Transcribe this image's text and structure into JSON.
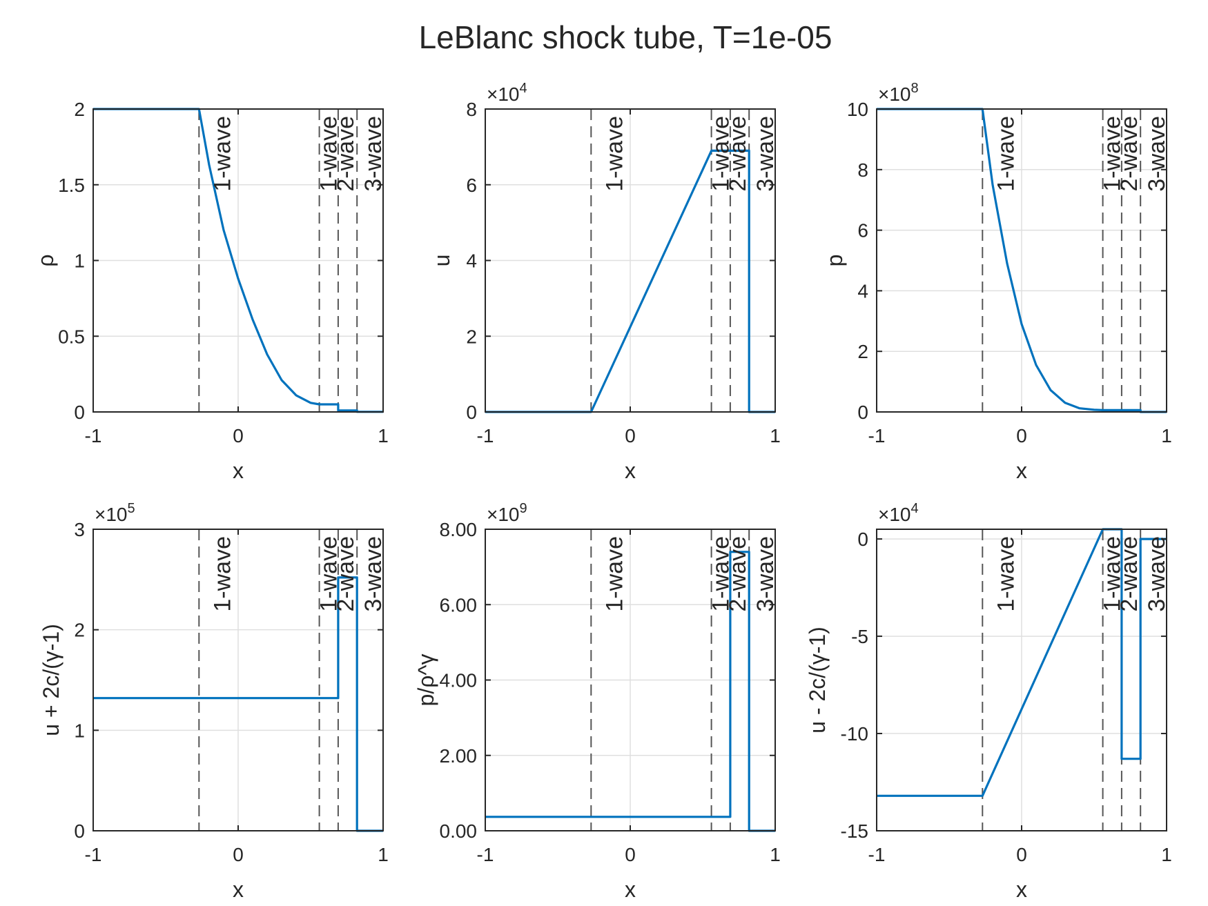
{
  "figure": {
    "title": "LeBlanc shock tube, T=1e-05",
    "colors": {
      "series": "#0072BD",
      "axes": "#262626",
      "grid": "#DFDFDF",
      "marker": "#555555"
    },
    "wave_labels": [
      "1-wave",
      "1-wave",
      "2-wave",
      "3-wave"
    ]
  },
  "chart_data": [
    {
      "type": "line",
      "xlabel": "x",
      "ylabel": "ρ",
      "exponent": "",
      "xlim": [
        -1,
        1
      ],
      "ylim": [
        0,
        2
      ],
      "xticks": [
        -1,
        0,
        1
      ],
      "xtick_labels": [
        "-1",
        "0",
        "1"
      ],
      "yticks": [
        0,
        0.5,
        1,
        1.5,
        2
      ],
      "ytick_labels": [
        "0",
        "0.5",
        "1",
        "1.5",
        "2"
      ],
      "grid": true,
      "wave_positions": [
        -0.27,
        0.56,
        0.69,
        0.82
      ],
      "wave_labels": [
        "1-wave",
        "1-wave",
        "2-wave",
        "3-wave"
      ],
      "series": [
        {
          "points": [
            [
              -1,
              2
            ],
            [
              -0.27,
              2
            ],
            [
              -0.2,
              1.63
            ],
            [
              -0.1,
              1.2
            ],
            [
              0,
              0.88
            ],
            [
              0.1,
              0.61
            ],
            [
              0.2,
              0.38
            ],
            [
              0.3,
              0.21
            ],
            [
              0.4,
              0.11
            ],
            [
              0.5,
              0.06
            ],
            [
              0.56,
              0.05
            ],
            [
              0.69,
              0.05
            ],
            [
              0.69,
              0.01
            ],
            [
              0.82,
              0.01
            ],
            [
              0.82,
              0.001
            ],
            [
              1,
              0.001
            ]
          ]
        }
      ]
    },
    {
      "type": "line",
      "xlabel": "x",
      "ylabel": "u",
      "exponent": "4",
      "xlim": [
        -1,
        1
      ],
      "ylim": [
        0,
        8
      ],
      "xticks": [
        -1,
        0,
        1
      ],
      "xtick_labels": [
        "-1",
        "0",
        "1"
      ],
      "yticks": [
        0,
        2,
        4,
        6,
        8
      ],
      "ytick_labels": [
        "0",
        "2",
        "4",
        "6",
        "8"
      ],
      "grid": true,
      "wave_positions": [
        -0.27,
        0.56,
        0.69,
        0.82
      ],
      "wave_labels": [
        "1-wave",
        "1-wave",
        "2-wave",
        "3-wave"
      ],
      "series": [
        {
          "points": [
            [
              -1,
              0
            ],
            [
              -0.27,
              0
            ],
            [
              0.56,
              6.9
            ],
            [
              0.82,
              6.9
            ],
            [
              0.82,
              0
            ],
            [
              1,
              0
            ]
          ]
        }
      ]
    },
    {
      "type": "line",
      "xlabel": "x",
      "ylabel": "p",
      "exponent": "8",
      "xlim": [
        -1,
        1
      ],
      "ylim": [
        0,
        10
      ],
      "xticks": [
        -1,
        0,
        1
      ],
      "xtick_labels": [
        "-1",
        "0",
        "1"
      ],
      "yticks": [
        0,
        2,
        4,
        6,
        8,
        10
      ],
      "ytick_labels": [
        "0",
        "2",
        "4",
        "6",
        "8",
        "10"
      ],
      "grid": true,
      "wave_positions": [
        -0.27,
        0.56,
        0.69,
        0.82
      ],
      "wave_labels": [
        "1-wave",
        "1-wave",
        "2-wave",
        "3-wave"
      ],
      "series": [
        {
          "points": [
            [
              -1,
              10
            ],
            [
              -0.27,
              10
            ],
            [
              -0.2,
              7.5
            ],
            [
              -0.1,
              4.9
            ],
            [
              0,
              2.9
            ],
            [
              0.1,
              1.55
            ],
            [
              0.2,
              0.72
            ],
            [
              0.3,
              0.3
            ],
            [
              0.4,
              0.12
            ],
            [
              0.5,
              0.07
            ],
            [
              0.56,
              0.06
            ],
            [
              0.82,
              0.06
            ],
            [
              0.82,
              0.0
            ],
            [
              1,
              0.0
            ]
          ]
        }
      ]
    },
    {
      "type": "line",
      "xlabel": "x",
      "ylabel": "u + 2c/(γ-1)",
      "exponent": "5",
      "xlim": [
        -1,
        1
      ],
      "ylim": [
        0,
        3
      ],
      "xticks": [
        -1,
        0,
        1
      ],
      "xtick_labels": [
        "-1",
        "0",
        "1"
      ],
      "yticks": [
        0,
        1,
        2,
        3
      ],
      "ytick_labels": [
        "0",
        "1",
        "2",
        "3"
      ],
      "grid": true,
      "wave_positions": [
        -0.27,
        0.56,
        0.69,
        0.82
      ],
      "wave_labels": [
        "1-wave",
        "1-wave",
        "2-wave",
        "3-wave"
      ],
      "series": [
        {
          "points": [
            [
              -1,
              1.32
            ],
            [
              0.69,
              1.32
            ],
            [
              0.69,
              2.52
            ],
            [
              0.82,
              2.52
            ],
            [
              0.82,
              0
            ],
            [
              1,
              0
            ]
          ]
        }
      ]
    },
    {
      "type": "line",
      "xlabel": "x",
      "ylabel": "p/ρ^γ",
      "exponent": "9",
      "xlim": [
        -1,
        1
      ],
      "ylim": [
        0,
        8
      ],
      "xticks": [
        -1,
        0,
        1
      ],
      "xtick_labels": [
        "-1",
        "0",
        "1"
      ],
      "yticks": [
        0,
        2,
        4,
        6,
        8
      ],
      "ytick_labels": [
        "0.00",
        "2.00",
        "4.00",
        "6.00",
        "8.00"
      ],
      "grid": true,
      "wave_positions": [
        -0.27,
        0.56,
        0.69,
        0.82
      ],
      "wave_labels": [
        "1-wave",
        "1-wave",
        "2-wave",
        "3-wave"
      ],
      "series": [
        {
          "points": [
            [
              -1,
              0.37
            ],
            [
              0.69,
              0.37
            ],
            [
              0.69,
              7.4
            ],
            [
              0.82,
              7.4
            ],
            [
              0.82,
              0
            ],
            [
              1,
              0
            ]
          ]
        }
      ]
    },
    {
      "type": "line",
      "xlabel": "x",
      "ylabel": "u - 2c/(γ-1)",
      "exponent": "4",
      "xlim": [
        -1,
        1
      ],
      "ylim": [
        -15,
        0.5
      ],
      "xticks": [
        -1,
        0,
        1
      ],
      "xtick_labels": [
        "-1",
        "0",
        "1"
      ],
      "yticks": [
        -15,
        -10,
        -5,
        0
      ],
      "ytick_labels": [
        "-15",
        "-10",
        "-5",
        "0"
      ],
      "grid": true,
      "wave_positions": [
        -0.27,
        0.56,
        0.69,
        0.82
      ],
      "wave_labels": [
        "1-wave",
        "1-wave",
        "2-wave",
        "3-wave"
      ],
      "series": [
        {
          "points": [
            [
              -1,
              -13.2
            ],
            [
              -0.27,
              -13.2
            ],
            [
              0.56,
              0.5
            ],
            [
              0.69,
              0.5
            ],
            [
              0.69,
              -11.3
            ],
            [
              0.82,
              -11.3
            ],
            [
              0.82,
              0
            ],
            [
              1,
              0
            ]
          ]
        }
      ]
    }
  ]
}
